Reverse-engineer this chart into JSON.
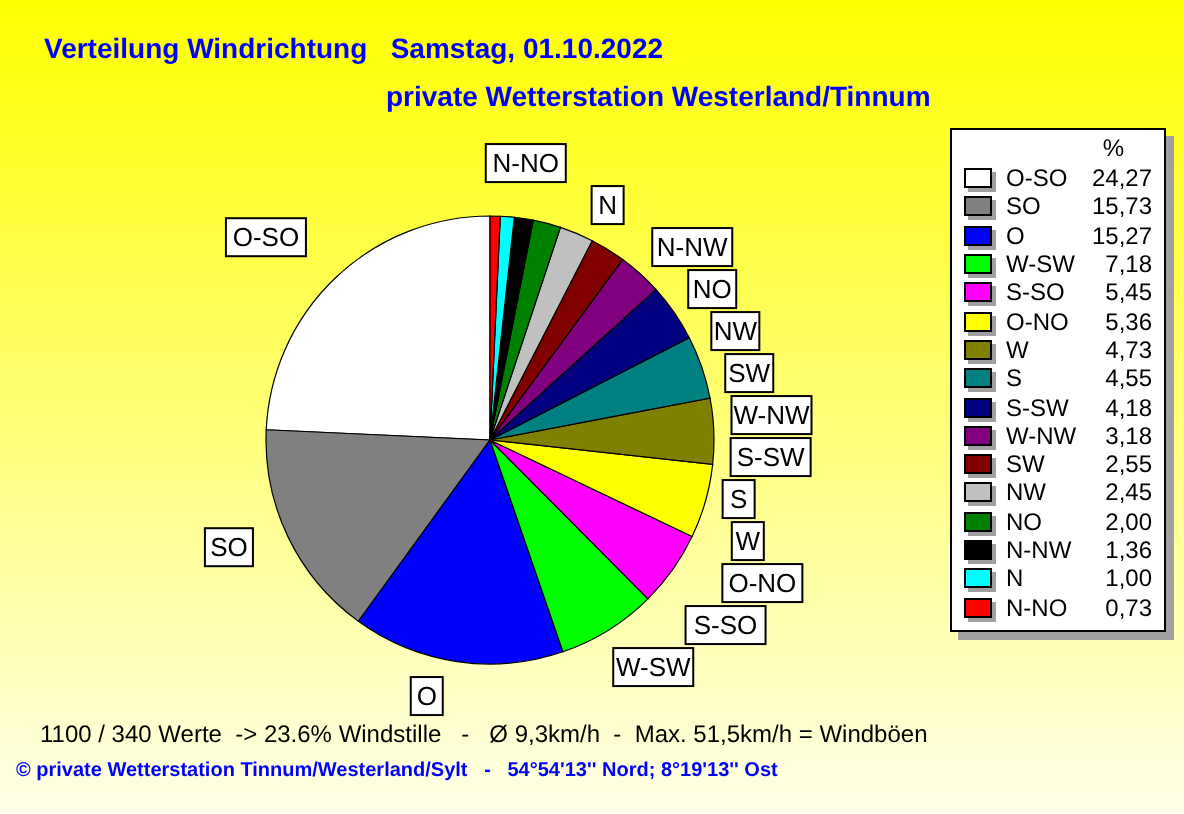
{
  "chart_data": {
    "type": "pie",
    "title": "Verteilung Windrichtung   Samstag, 01.10.2022",
    "subtitle": "private Wetterstation Westerland/Tinnum",
    "legend_title": "%",
    "categories": [
      "O-SO",
      "SO",
      "O",
      "W-SW",
      "S-SO",
      "O-NO",
      "W",
      "S",
      "S-SW",
      "W-NW",
      "SW",
      "NW",
      "NO",
      "N-NW",
      "N",
      "N-NO"
    ],
    "values": [
      24.27,
      15.73,
      15.27,
      7.18,
      5.45,
      5.36,
      4.73,
      4.55,
      4.18,
      3.18,
      2.55,
      2.45,
      2.0,
      1.36,
      1.0,
      0.73
    ],
    "colors": [
      "#ffffff",
      "#808080",
      "#0000ff",
      "#00ff00",
      "#ff00ff",
      "#ffff00",
      "#808000",
      "#008080",
      "#000080",
      "#800080",
      "#800000",
      "#c0c0c0",
      "#008000",
      "#000000",
      "#00ffff",
      "#ff0000"
    ],
    "value_labels": [
      "24,27",
      "15,73",
      "15,27",
      "7,18",
      "5,45",
      "5,36",
      "4,73",
      "4,55",
      "4,18",
      "3,18",
      "2,55",
      "2,45",
      "2,00",
      "1,36",
      "1,00",
      "0,73"
    ],
    "legend": "right",
    "annotations": [
      "1100 / 340 Werte  -> 23.6% Windstille   -   Ø 9,3km/h  -  Max. 51,5km/h = Windböen",
      "© private Wetterstation Tinnum/Westerland/Sylt   -   54°54'13'' Nord; 8°19'13'' Ost"
    ]
  }
}
